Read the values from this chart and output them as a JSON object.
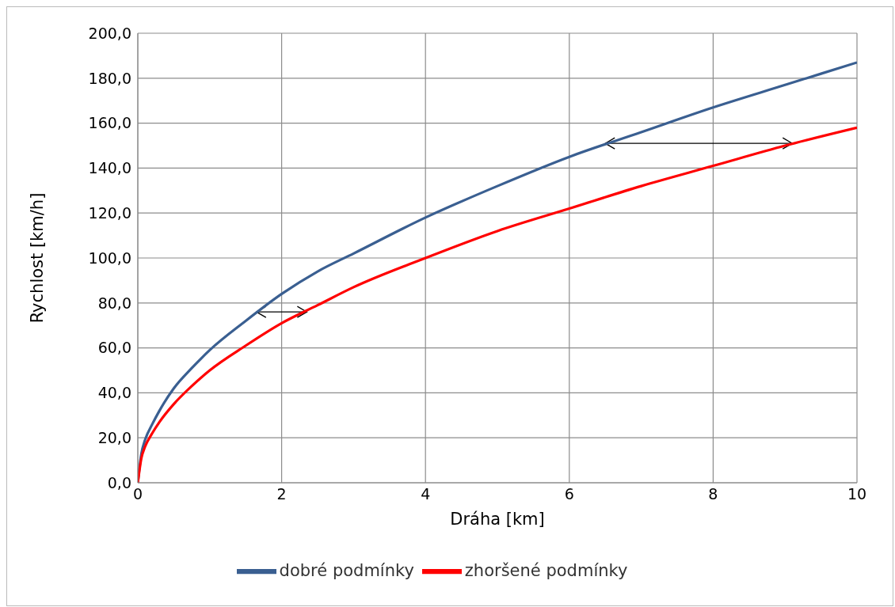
{
  "chart_data": {
    "type": "line",
    "xlabel": "Dráha [km]",
    "ylabel": "Rychlost [km/h]",
    "xlim": [
      0,
      10
    ],
    "xticks": [
      0,
      2,
      4,
      6,
      8,
      10
    ],
    "ylim": [
      0,
      200
    ],
    "yticks": [
      {
        "value": 0,
        "label": "0,0"
      },
      {
        "value": 20,
        "label": "20,0"
      },
      {
        "value": 40,
        "label": "40,0"
      },
      {
        "value": 60,
        "label": "60,0"
      },
      {
        "value": 80,
        "label": "80,0"
      },
      {
        "value": 100,
        "label": "100,0"
      },
      {
        "value": 120,
        "label": "120,0"
      },
      {
        "value": 140,
        "label": "140,0"
      },
      {
        "value": 160,
        "label": "160,0"
      },
      {
        "value": 180,
        "label": "180,0"
      },
      {
        "value": 200,
        "label": "200,0"
      }
    ],
    "x": [
      0,
      0.05,
      0.1,
      0.2,
      0.3,
      0.5,
      0.75,
      1,
      1.5,
      2,
      2.5,
      3,
      4,
      5,
      6,
      7,
      8,
      9,
      10
    ],
    "series": [
      {
        "name": "dobré podmínky",
        "color": "#3a5f91",
        "values": [
          0,
          13,
          19,
          26,
          32,
          42,
          51,
          59,
          72,
          84,
          94,
          102,
          118,
          132,
          145,
          156,
          167,
          177,
          187
        ]
      },
      {
        "name": "zhoršené podmínky",
        "color": "#ff0000",
        "values": [
          0,
          11,
          16,
          22,
          27,
          35,
          43,
          50,
          61,
          71,
          79,
          87,
          100,
          112,
          122,
          132,
          141,
          150,
          158
        ]
      }
    ],
    "grid": true,
    "legend": "bottom",
    "marker": "none",
    "line_style": "solid"
  }
}
